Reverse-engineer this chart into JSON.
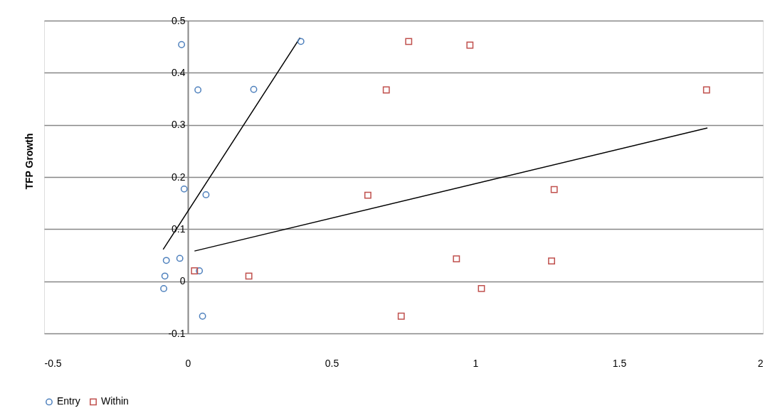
{
  "chart_data": {
    "type": "scatter",
    "ylabel": "TFP Growth",
    "xlim": [
      -0.5,
      2
    ],
    "xticks": [
      -0.5,
      0,
      0.5,
      1,
      1.5,
      2
    ],
    "ylim": [
      -0.1,
      0.5
    ],
    "yticks": [
      -0.1,
      0,
      0.1,
      0.2,
      0.3,
      0.4,
      0.5
    ],
    "grid": "y",
    "legend": "bottom",
    "series": [
      {
        "name": "Entry",
        "color": "#4f81bd",
        "marker": "circle",
        "x": [
          -0.022,
          0.393,
          0.035,
          0.229,
          -0.013,
          0.063,
          -0.028,
          -0.075,
          -0.08,
          -0.084,
          0.04,
          0.051
        ],
        "values": [
          0.454,
          0.46,
          0.367,
          0.368,
          0.177,
          0.166,
          0.044,
          0.04,
          0.01,
          -0.014,
          0.02,
          -0.067
        ]
      },
      {
        "name": "Within",
        "color": "#c0504d",
        "marker": "square",
        "x": [
          0.768,
          0.981,
          0.69,
          1.804,
          0.626,
          1.274,
          0.934,
          1.265,
          1.021,
          0.742,
          0.023,
          0.212
        ],
        "values": [
          0.46,
          0.453,
          0.367,
          0.367,
          0.165,
          0.176,
          0.043,
          0.039,
          -0.014,
          -0.067,
          0.02,
          0.01
        ]
      },
      {
        "type": "line",
        "color": "#000000",
        "x": [
          -0.086,
          0.39
        ],
        "values": [
          0.061,
          0.467
        ]
      },
      {
        "type": "line",
        "color": "#000000",
        "x": [
          0.023,
          1.807
        ],
        "values": [
          0.058,
          0.294
        ]
      }
    ]
  }
}
